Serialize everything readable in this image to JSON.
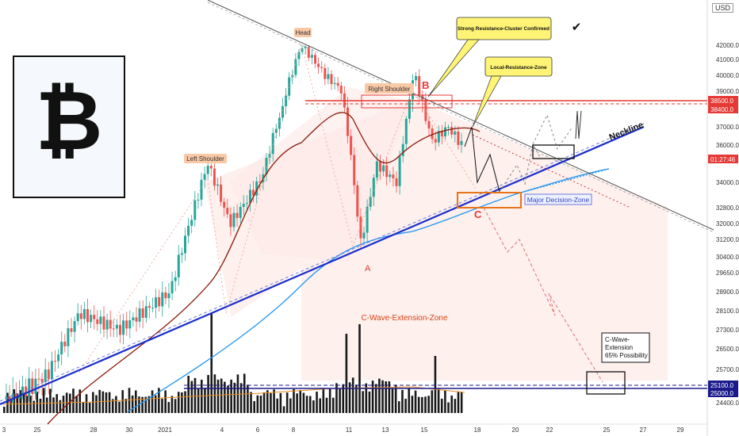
{
  "symbol_logo": {
    "glyph": "₿"
  },
  "currency": "USD",
  "chart_data": {
    "type": "candlestick",
    "x_tick_labels": [
      "3",
      "25",
      "28",
      "30",
      "2021",
      "4",
      "6",
      "8",
      "11",
      "13",
      "15",
      "18",
      "20",
      "22",
      "25",
      "27",
      "29"
    ],
    "y_tick_labels": [
      "42000.0",
      "41000.0",
      "40000.0",
      "39000.0",
      "37000.0",
      "36000.0",
      "34000.0",
      "32800.0",
      "32000.0",
      "31200.0",
      "30400.0",
      "29650.0",
      "28900.0",
      "28100.0",
      "27300.0",
      "26500.0",
      "25700.0",
      "24400.0"
    ],
    "price_tags": [
      {
        "label": "38500.0",
        "color": "#e53935"
      },
      {
        "label": "38400.0",
        "color": "#e53935"
      },
      {
        "label": "01:27:46",
        "color": "#e53935"
      },
      {
        "label": "25100.0",
        "color": "#1a1a8c"
      },
      {
        "label": "25000.0",
        "color": "#1a1a8c"
      }
    ],
    "annotations": {
      "head": "Head",
      "left_shoulder": "Left Shoulder",
      "right_shoulder": "Right Shoulder",
      "point_b": "B",
      "point_a": "A",
      "point_c": "C",
      "neckline": "Neckline",
      "major_decision_zone": "Major Decision-Zone",
      "c_wave_zone": "C-Wave-Extension-Zone",
      "c_wave_box": [
        "C-Wave-",
        "Extension",
        "65% Possibility"
      ],
      "callout_strong": "Strong Resistance-Cluster Confirmed",
      "callout_local": "Local-Resistance-Zone",
      "checkmark": "✔"
    },
    "colors": {
      "up": "#26a69a",
      "down": "#ef5350",
      "neckline": "#1a2ecc",
      "ma_short": "#8b1a0a",
      "ma_long": "#2196f3",
      "resistance": "#e53935",
      "volume": "#1a1a1a"
    }
  }
}
